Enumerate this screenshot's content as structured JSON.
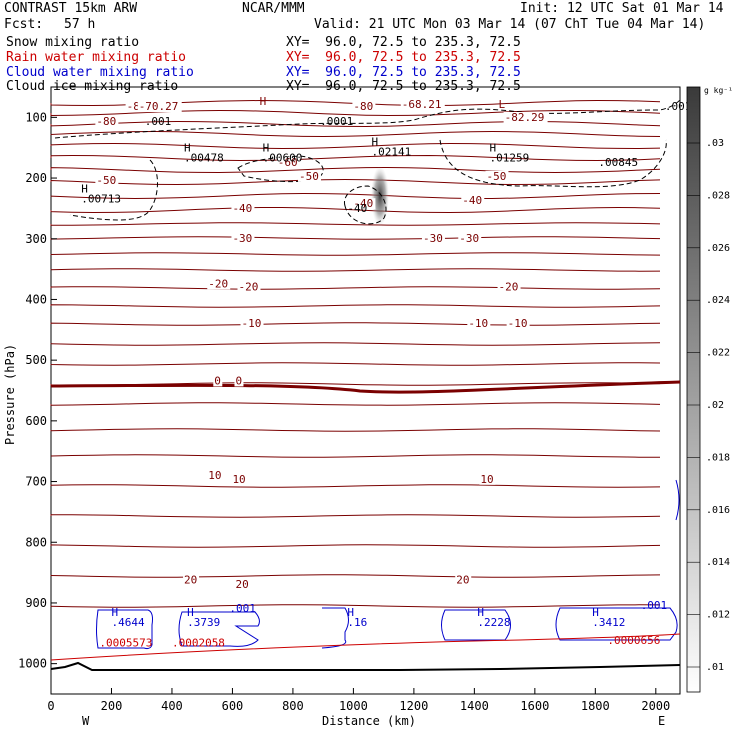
{
  "header": {
    "model": "CONTRAST 15km ARW",
    "forecast_label": "Fcst:",
    "forecast_value": "57 h",
    "org": "NCAR/MMM",
    "init": "Init: 12 UTC Sat 01 Mar 14",
    "valid": "Valid: 21 UTC Mon 03 Mar 14 (07 ChT Tue 04 Mar 14)"
  },
  "legend_lines": [
    {
      "name": "Snow mixing ratio",
      "xy": "XY=  96.0, 72.5 to 235.3, 72.5",
      "color": "#000000"
    },
    {
      "name": "Rain water mixing ratio",
      "xy": "XY=  96.0, 72.5 to 235.3, 72.5",
      "color": "#cc0000"
    },
    {
      "name": "Cloud water mixing ratio",
      "xy": "XY=  96.0, 72.5 to 235.3, 72.5",
      "color": "#0000cc"
    },
    {
      "name": "Cloud ice mixing ratio",
      "xy": "XY=  96.0, 72.5 to 235.3, 72.5",
      "color": "#000000"
    }
  ],
  "chart_data": {
    "type": "contour",
    "xlabel": "Distance (km)",
    "ylabel": "Pressure (hPa)",
    "x_ticks": [
      0,
      200,
      400,
      600,
      800,
      1000,
      1200,
      1400,
      1600,
      1800,
      2000
    ],
    "y_ticks": [
      100,
      200,
      300,
      400,
      500,
      600,
      700,
      800,
      900,
      1000
    ],
    "xlim": [
      0,
      2080
    ],
    "ylim": [
      1050,
      50
    ],
    "x_end_labels": {
      "left": "W",
      "right": "E"
    },
    "colorbar": {
      "unit": "g kg⁻¹",
      "ticks": [
        ".01",
        ".012",
        ".014",
        ".016",
        ".018",
        ".02",
        ".022",
        ".024",
        ".026",
        ".028",
        ".03"
      ]
    },
    "temperature_labels": [
      {
        "text": "-80",
        "x": 250,
        "p": 88
      },
      {
        "text": "-80",
        "x": 150,
        "p": 113
      },
      {
        "text": "-80",
        "x": 1000,
        "p": 88
      },
      {
        "text": "-70.27",
        "x": 290,
        "p": 88
      },
      {
        "text": "-68.21",
        "x": 1160,
        "p": 85
      },
      {
        "text": "-82.29",
        "x": 1500,
        "p": 106
      },
      {
        "text": "-60",
        "x": 750,
        "p": 180
      },
      {
        "text": "-50",
        "x": 150,
        "p": 210
      },
      {
        "text": "-50",
        "x": 820,
        "p": 203
      },
      {
        "text": "-50",
        "x": 1440,
        "p": 203
      },
      {
        "text": "-40",
        "x": 600,
        "p": 256
      },
      {
        "text": "-40",
        "x": 1000,
        "p": 248
      },
      {
        "text": "-40",
        "x": 1360,
        "p": 243
      },
      {
        "text": "-30",
        "x": 600,
        "p": 305
      },
      {
        "text": "-30",
        "x": 1230,
        "p": 305
      },
      {
        "text": "-30",
        "x": 1350,
        "p": 305
      },
      {
        "text": "-20",
        "x": 520,
        "p": 380
      },
      {
        "text": "-20",
        "x": 620,
        "p": 385
      },
      {
        "text": "-20",
        "x": 1480,
        "p": 385
      },
      {
        "text": "-10",
        "x": 630,
        "p": 445
      },
      {
        "text": "-10",
        "x": 1380,
        "p": 445
      },
      {
        "text": "-10",
        "x": 1510,
        "p": 445
      },
      {
        "text": "0",
        "x": 540,
        "p": 540
      },
      {
        "text": "0",
        "x": 610,
        "p": 540
      },
      {
        "text": "10",
        "x": 520,
        "p": 696
      },
      {
        "text": "10",
        "x": 600,
        "p": 702
      },
      {
        "text": "10",
        "x": 1420,
        "p": 702
      },
      {
        "text": "20",
        "x": 440,
        "p": 868
      },
      {
        "text": "20",
        "x": 610,
        "p": 875
      },
      {
        "text": "20",
        "x": 1340,
        "p": 868
      }
    ],
    "extrema_labels": [
      {
        "kind": "H",
        "text": "",
        "x": 690,
        "p": 80,
        "color": "#800000"
      },
      {
        "kind": "L",
        "text": "",
        "x": 1480,
        "p": 85,
        "color": "#800000"
      },
      {
        "kind": "",
        "text": ".001",
        "x": 310,
        "p": 113,
        "color": "#000000"
      },
      {
        "kind": "",
        "text": ".0001",
        "x": 890,
        "p": 113,
        "color": "#000000"
      },
      {
        "kind": "",
        "text": ".001",
        "x": 2030,
        "p": 88,
        "color": "#000000"
      },
      {
        "kind": "H",
        "text": ".00478",
        "x": 440,
        "p": 173,
        "color": "#000000"
      },
      {
        "kind": "H",
        "text": ".00600",
        "x": 700,
        "p": 173,
        "color": "#000000"
      },
      {
        "kind": "H",
        "text": ".02141",
        "x": 1060,
        "p": 163,
        "color": "#000000"
      },
      {
        "kind": "H",
        "text": ".01259",
        "x": 1450,
        "p": 173,
        "color": "#000000"
      },
      {
        "kind": "",
        "text": ".00845",
        "x": 1810,
        "p": 180,
        "color": "#000000"
      },
      {
        "kind": "H",
        "text": ".00713",
        "x": 100,
        "p": 240,
        "color": "#000000"
      },
      {
        "kind": "",
        "text": "-40",
        "x": 980,
        "p": 256,
        "color": "#000000"
      },
      {
        "kind": "H",
        "text": ".4644",
        "x": 200,
        "p": 938,
        "color": "#0000cc"
      },
      {
        "kind": "H",
        "text": ".3739",
        "x": 450,
        "p": 938,
        "color": "#0000cc"
      },
      {
        "kind": "H",
        "text": ".16",
        "x": 980,
        "p": 938,
        "color": "#0000cc"
      },
      {
        "kind": "H",
        "text": ".2228",
        "x": 1410,
        "p": 938,
        "color": "#0000cc"
      },
      {
        "kind": "H",
        "text": ".3412",
        "x": 1790,
        "p": 938,
        "color": "#0000cc"
      },
      {
        "kind": "",
        "text": ".001",
        "x": 590,
        "p": 915,
        "color": "#0000cc"
      },
      {
        "kind": "",
        "text": ".001",
        "x": 1950,
        "p": 910,
        "color": "#0000cc"
      },
      {
        "kind": "",
        "text": ".0005573",
        "x": 160,
        "p": 972,
        "color": "#cc0000"
      },
      {
        "kind": "",
        "text": ".0002058",
        "x": 400,
        "p": 972,
        "color": "#cc0000"
      },
      {
        "kind": "",
        "text": ".0000656",
        "x": 1840,
        "p": 968,
        "color": "#cc0000"
      }
    ],
    "colors": {
      "temperature": "#7a0000",
      "freezing_line": "#7a0000",
      "cloud_water": "#0000cc",
      "rain": "#cc0000",
      "cloud_ice": "#000000",
      "terrain": "#000000"
    }
  }
}
